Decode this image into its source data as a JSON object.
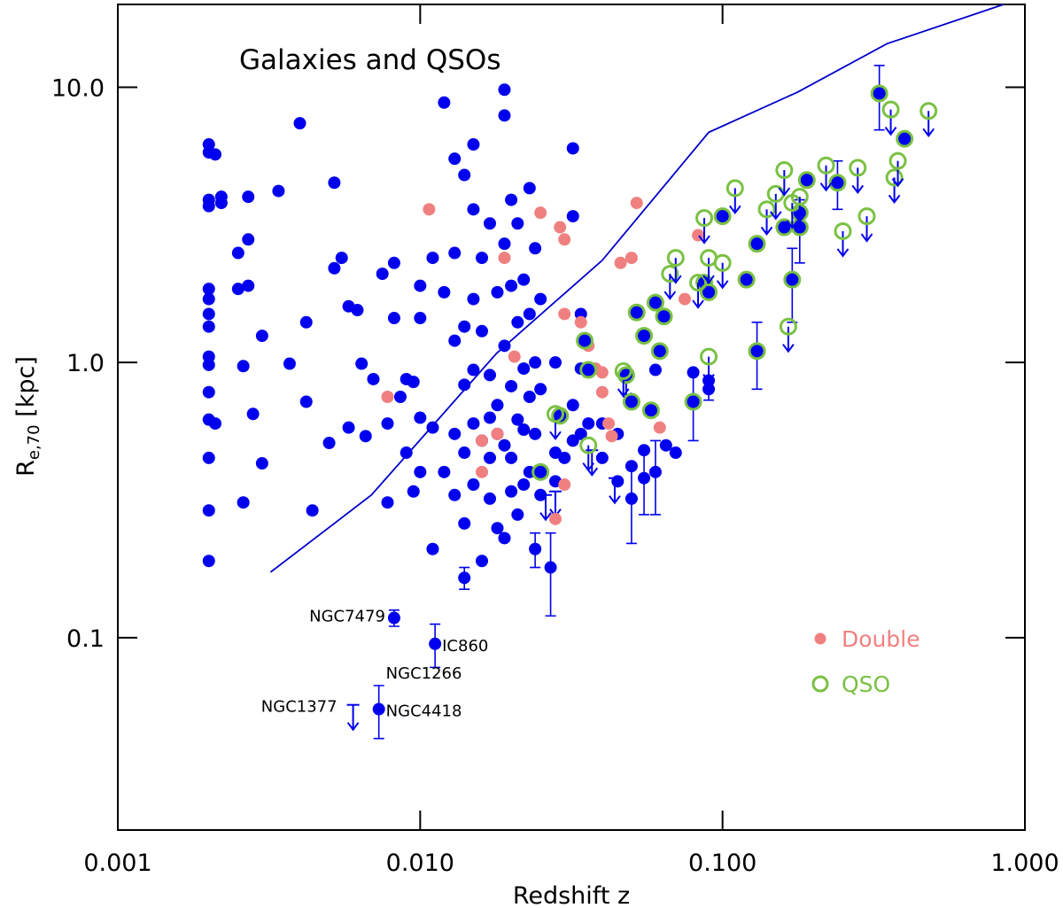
{
  "chart_data": {
    "type": "scatter",
    "title": "Galaxies and QSOs",
    "xlabel": "Redshift z",
    "ylabel": {
      "main": "R",
      "sub": "e,70",
      "rest": " [kpc]"
    },
    "xscale": "log",
    "yscale": "log",
    "xlim": [
      0.001,
      1
    ],
    "ylim": [
      0.02,
      20
    ],
    "xticks": [
      {
        "value": 0.001,
        "label": "0.001"
      },
      {
        "value": 0.01,
        "label": "0.010"
      },
      {
        "value": 0.1,
        "label": "0.100"
      },
      {
        "value": 1,
        "label": "1.000"
      }
    ],
    "yticks": [
      0.1,
      {
        "value": 1,
        "label": "1.0"
      },
      {
        "value": 10,
        "label": "10.0"
      }
    ],
    "legend": "lower right",
    "series": [
      {
        "color": "#0000ee",
        "marker": "dot",
        "x": [
          0.002,
          0.002,
          0.002,
          0.002,
          0.002,
          0.002,
          0.002,
          0.002,
          0.002,
          0.002,
          0.002,
          0.002,
          0.002,
          0.002,
          0.002,
          0.0021,
          0.0021,
          0.0022,
          0.0022,
          0.0025,
          0.0025,
          0.0026,
          0.0026,
          0.0027,
          0.0027,
          0.0027,
          0.0028,
          0.003,
          0.003,
          0.0034,
          0.0037,
          0.004,
          0.0042,
          0.0042,
          0.0044,
          0.005,
          0.0052,
          0.0052,
          0.0055,
          0.0058,
          0.0058,
          0.0062,
          0.0064,
          0.0066,
          0.007,
          0.0075,
          0.0078,
          0.0078,
          0.0082,
          0.0082,
          0.0086,
          0.009,
          0.009,
          0.0095,
          0.0095,
          0.01,
          0.01,
          0.01,
          0.01,
          0.011,
          0.011,
          0.011,
          0.012,
          0.012,
          0.012,
          0.013,
          0.013,
          0.013,
          0.013,
          0.013,
          0.014,
          0.014,
          0.014,
          0.014,
          0.014,
          0.015,
          0.015,
          0.015,
          0.015,
          0.015,
          0.015,
          0.016,
          0.016,
          0.016,
          0.016,
          0.017,
          0.017,
          0.017,
          0.017,
          0.017,
          0.018,
          0.018,
          0.018,
          0.018,
          0.019,
          0.019,
          0.019,
          0.019,
          0.019,
          0.019,
          0.02,
          0.02,
          0.02,
          0.02,
          0.02,
          0.021,
          0.021,
          0.021,
          0.021,
          0.022,
          0.022,
          0.022,
          0.022,
          0.023,
          0.023,
          0.023,
          0.023,
          0.024,
          0.024,
          0.024,
          0.025,
          0.025,
          0.025,
          0.028,
          0.028,
          0.028,
          0.03,
          0.032,
          0.032,
          0.032,
          0.032,
          0.034,
          0.034,
          0.034,
          0.036,
          0.04,
          0.04,
          0.045,
          0.045,
          0.05,
          0.055,
          0.06,
          0.065,
          0.07,
          0.08,
          0.09
        ],
        "values": [
          6.2,
          5.8,
          3.9,
          3.7,
          1.85,
          1.7,
          1.5,
          1.35,
          1.05,
          0.98,
          0.78,
          0.62,
          0.45,
          0.29,
          0.19,
          5.7,
          0.6,
          4.0,
          3.8,
          2.5,
          1.85,
          0.97,
          0.31,
          2.8,
          1.9,
          4.0,
          0.65,
          1.25,
          0.43,
          4.2,
          0.99,
          7.4,
          1.4,
          0.72,
          0.29,
          0.51,
          4.5,
          2.2,
          2.4,
          1.6,
          0.58,
          1.55,
          0.99,
          0.54,
          0.87,
          2.1,
          0.31,
          0.6,
          1.45,
          2.3,
          0.75,
          0.87,
          0.47,
          0.85,
          0.34,
          1.9,
          1.45,
          0.63,
          0.4,
          2.4,
          0.58,
          0.21,
          8.8,
          1.8,
          0.4,
          5.5,
          2.5,
          1.2,
          0.55,
          0.33,
          4.8,
          1.35,
          0.83,
          0.47,
          0.26,
          6.2,
          3.6,
          1.7,
          0.94,
          0.6,
          0.36,
          2.4,
          1.3,
          0.52,
          0.19,
          3.2,
          0.9,
          0.63,
          0.45,
          0.32,
          1.8,
          0.7,
          0.55,
          0.25,
          9.8,
          7.9,
          2.7,
          1.15,
          0.5,
          0.23,
          3.9,
          1.9,
          0.82,
          0.45,
          0.34,
          3.2,
          1.4,
          0.62,
          0.28,
          2.0,
          0.95,
          0.57,
          0.36,
          4.3,
          1.5,
          0.75,
          0.4,
          2.6,
          1.0,
          0.55,
          1.7,
          0.8,
          0.33,
          1.0,
          0.47,
          0.37,
          0.45,
          6.0,
          3.4,
          0.7,
          0.52,
          1.5,
          0.95,
          0.55,
          0.6,
          0.6,
          0.45,
          0.55,
          0.37,
          0.42,
          0.48,
          0.94,
          0.5,
          0.47,
          0.92,
          0.86
        ]
      },
      {
        "color": "#0000ee",
        "marker": "dot",
        "x": [
          0.0082,
          0.0112,
          0.0073,
          0.014,
          0.027,
          0.024,
          0.05,
          0.055,
          0.06,
          0.08,
          0.09,
          0.13,
          0.17,
          0.18,
          0.33,
          0.24
        ],
        "values": [
          0.118,
          0.095,
          0.055,
          0.165,
          0.18,
          0.21,
          0.32,
          0.38,
          0.4,
          0.72,
          0.8,
          1.1,
          2.0,
          3.1,
          9.5,
          4.5
        ],
        "errors": [
          0.008,
          0.017,
          0.012,
          0.015,
          0.06,
          0.03,
          0.1,
          0.1,
          0.12,
          0.2,
          0.07,
          0.3,
          0.6,
          0.8,
          2.5,
          0.9
        ]
      },
      {
        "color": "#0000ee",
        "marker": "arrow",
        "upper_limit": true,
        "x": [
          0.006,
          0.026,
          0.028,
          0.037,
          0.044,
          0.048
        ],
        "values": [
          0.057,
          0.33,
          0.34,
          0.48,
          0.38,
          0.9
        ]
      },
      {
        "name": "Double",
        "color": "#f08080",
        "marker": "dot",
        "x": [
          0.0078,
          0.0107,
          0.019,
          0.0205,
          0.025,
          0.029,
          0.03,
          0.03,
          0.034,
          0.036,
          0.038,
          0.04,
          0.04,
          0.042,
          0.043,
          0.046,
          0.05,
          0.052,
          0.062,
          0.075,
          0.083,
          0.028,
          0.03,
          0.016,
          0.016,
          0.018
        ],
        "values": [
          0.75,
          3.6,
          2.4,
          1.05,
          3.5,
          3.1,
          2.8,
          1.5,
          1.4,
          1.15,
          0.95,
          0.92,
          0.78,
          0.6,
          0.54,
          2.3,
          2.4,
          3.8,
          0.58,
          1.7,
          2.9,
          0.27,
          0.36,
          0.52,
          0.4,
          0.55
        ]
      },
      {
        "name": "QSO",
        "color": "#7ac143",
        "marker": "ring",
        "fill": "#0000ee",
        "x": [
          0.025,
          0.029,
          0.035,
          0.036,
          0.048,
          0.05,
          0.052,
          0.055,
          0.058,
          0.06,
          0.062,
          0.064,
          0.08,
          0.087,
          0.09,
          0.1,
          0.12,
          0.13,
          0.13,
          0.16,
          0.17,
          0.18,
          0.18,
          0.19,
          0.24,
          0.33,
          0.4
        ],
        "values": [
          0.4,
          0.64,
          1.2,
          0.94,
          0.9,
          0.72,
          1.52,
          1.25,
          0.67,
          1.65,
          1.1,
          1.47,
          0.72,
          1.95,
          1.8,
          3.4,
          2.0,
          2.7,
          1.1,
          3.1,
          2.0,
          3.1,
          3.5,
          4.6,
          4.5,
          9.5,
          6.5
        ]
      },
      {
        "color": "#7ac143",
        "marker": "ring",
        "upper_limit": true,
        "x": [
          0.028,
          0.036,
          0.047,
          0.067,
          0.07,
          0.083,
          0.087,
          0.09,
          0.1,
          0.11,
          0.14,
          0.15,
          0.16,
          0.165,
          0.17,
          0.18,
          0.22,
          0.25,
          0.28,
          0.3,
          0.36,
          0.37,
          0.38,
          0.48,
          0.09
        ],
        "values": [
          0.65,
          0.5,
          0.93,
          2.1,
          2.4,
          1.95,
          3.35,
          2.4,
          2.3,
          4.3,
          3.6,
          4.1,
          5.0,
          1.35,
          3.8,
          4.0,
          5.2,
          3.0,
          5.1,
          3.4,
          8.3,
          4.7,
          5.4,
          8.2,
          1.05
        ]
      },
      {
        "color": "#0000cc",
        "marker": "line",
        "x": [
          0.0032,
          0.0069,
          0.0179,
          0.04,
          0.09,
          0.177,
          0.35,
          0.85
        ],
        "values": [
          0.173,
          0.33,
          1.08,
          2.35,
          6.86,
          9.6,
          14.4,
          20
        ]
      }
    ],
    "annotations": [
      {
        "text": "NGC7479",
        "x": 0.0082,
        "y": 0.118
      },
      {
        "text": "IC860",
        "x": 0.0112,
        "y": 0.095
      },
      {
        "text": "NGC1266",
        "x": 0.0073,
        "y": 0.065
      },
      {
        "text": "NGC4418",
        "x": 0.0073,
        "y": 0.055
      },
      {
        "text": "NGC1377",
        "x": 0.006,
        "y": 0.057
      }
    ]
  }
}
